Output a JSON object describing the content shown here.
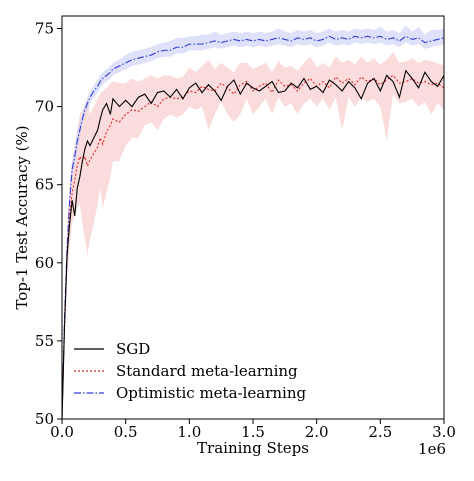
{
  "chart_data": {
    "type": "line",
    "xlabel": "Training Steps",
    "ylabel": "Top-1 Test Accuracy (%)",
    "x_offset_text": "1e6",
    "xlim": [
      0,
      3.0
    ],
    "ylim": [
      50,
      75.8
    ],
    "x_ticks": [
      0.0,
      0.5,
      1.0,
      1.5,
      2.0,
      2.5,
      3.0
    ],
    "x_tick_labels": [
      "0.0",
      "0.5",
      "1.0",
      "1.5",
      "2.0",
      "2.5",
      "3.0"
    ],
    "y_ticks": [
      50,
      55,
      60,
      65,
      70,
      75
    ],
    "y_tick_labels": [
      "50",
      "55",
      "60",
      "65",
      "70",
      "75"
    ],
    "grid": false,
    "legend_position": "lower-left",
    "series": [
      {
        "name": "SGD",
        "color": "#000000",
        "style": "solid",
        "x": [
          0.0,
          0.02,
          0.04,
          0.06,
          0.08,
          0.1,
          0.12,
          0.14,
          0.16,
          0.18,
          0.2,
          0.22,
          0.25,
          0.28,
          0.3,
          0.32,
          0.35,
          0.38,
          0.4,
          0.45,
          0.5,
          0.55,
          0.6,
          0.65,
          0.7,
          0.75,
          0.8,
          0.85,
          0.9,
          0.95,
          1.0,
          1.05,
          1.1,
          1.15,
          1.2,
          1.25,
          1.3,
          1.35,
          1.4,
          1.45,
          1.5,
          1.55,
          1.6,
          1.65,
          1.7,
          1.75,
          1.8,
          1.85,
          1.9,
          1.95,
          2.0,
          2.05,
          2.1,
          2.15,
          2.2,
          2.25,
          2.3,
          2.35,
          2.4,
          2.45,
          2.5,
          2.55,
          2.6,
          2.65,
          2.7,
          2.75,
          2.8,
          2.85,
          2.9,
          2.95,
          3.0
        ],
        "values": [
          50.0,
          56.0,
          60.5,
          62.5,
          64.0,
          63.0,
          64.8,
          65.5,
          66.5,
          67.3,
          67.8,
          67.5,
          68.0,
          68.5,
          69.2,
          69.8,
          70.2,
          69.5,
          70.5,
          70.0,
          70.4,
          70.0,
          70.6,
          70.8,
          70.2,
          70.9,
          71.0,
          70.6,
          71.1,
          70.5,
          71.2,
          71.5,
          70.9,
          71.4,
          71.0,
          70.4,
          71.3,
          71.7,
          70.8,
          71.5,
          71.2,
          71.0,
          71.3,
          71.6,
          70.9,
          71.0,
          71.5,
          71.2,
          71.8,
          71.1,
          71.3,
          70.9,
          71.7,
          71.4,
          71.0,
          71.6,
          71.2,
          70.5,
          71.5,
          71.8,
          71.0,
          72.0,
          71.6,
          70.6,
          72.3,
          71.8,
          71.2,
          72.2,
          71.6,
          71.3,
          72.0
        ]
      },
      {
        "name": "Standard meta-learning",
        "color": "#e8242a",
        "style": "dotted",
        "band_color": "#f7c5c5",
        "x": [
          0.0,
          0.02,
          0.04,
          0.06,
          0.08,
          0.1,
          0.12,
          0.14,
          0.16,
          0.18,
          0.2,
          0.22,
          0.25,
          0.28,
          0.3,
          0.32,
          0.35,
          0.38,
          0.4,
          0.45,
          0.5,
          0.55,
          0.6,
          0.65,
          0.7,
          0.75,
          0.8,
          0.85,
          0.9,
          0.95,
          1.0,
          1.05,
          1.1,
          1.15,
          1.2,
          1.25,
          1.3,
          1.35,
          1.4,
          1.45,
          1.5,
          1.55,
          1.6,
          1.65,
          1.7,
          1.75,
          1.8,
          1.85,
          1.9,
          1.95,
          2.0,
          2.05,
          2.1,
          2.15,
          2.2,
          2.25,
          2.3,
          2.35,
          2.4,
          2.45,
          2.5,
          2.55,
          2.6,
          2.65,
          2.7,
          2.75,
          2.8,
          2.85,
          2.9,
          2.95,
          3.0
        ],
        "values": [
          50.0,
          56.0,
          60.5,
          63.0,
          64.5,
          65.3,
          66.2,
          66.8,
          66.5,
          66.8,
          66.2,
          66.6,
          67.0,
          67.4,
          68.0,
          67.6,
          68.4,
          68.8,
          69.2,
          69.0,
          69.5,
          69.8,
          69.7,
          70.0,
          70.3,
          70.0,
          70.5,
          70.6,
          70.5,
          70.6,
          71.0,
          70.9,
          71.3,
          71.1,
          71.0,
          71.5,
          71.2,
          70.8,
          71.4,
          71.6,
          71.0,
          71.3,
          71.5,
          70.9,
          71.7,
          71.3,
          71.4,
          71.0,
          71.5,
          71.8,
          71.3,
          71.6,
          71.2,
          71.9,
          71.5,
          71.8,
          71.4,
          71.9,
          71.6,
          71.8,
          71.4,
          71.7,
          72.0,
          71.5,
          71.6,
          71.8,
          71.5,
          71.6,
          71.4,
          71.5,
          71.2
        ],
        "band_lower": [
          50.0,
          55.0,
          59.0,
          61.0,
          62.5,
          63.0,
          63.5,
          63.8,
          62.5,
          61.5,
          60.5,
          61.5,
          62.5,
          63.8,
          64.8,
          63.5,
          64.5,
          65.5,
          66.5,
          66.5,
          67.5,
          68.0,
          68.0,
          68.8,
          69.0,
          68.5,
          69.2,
          69.5,
          69.3,
          69.5,
          70.0,
          69.8,
          70.0,
          68.5,
          69.5,
          70.3,
          69.5,
          69.0,
          69.5,
          70.5,
          69.5,
          70.0,
          70.5,
          69.5,
          70.6,
          70.0,
          70.2,
          69.5,
          70.2,
          70.5,
          70.0,
          70.5,
          69.8,
          70.6,
          68.5,
          70.6,
          70.0,
          70.6,
          70.3,
          70.5,
          70.0,
          67.8,
          70.8,
          70.2,
          70.3,
          70.5,
          70.0,
          70.3,
          69.5,
          70.2,
          69.8
        ],
        "band_upper": [
          50.0,
          57.0,
          62.0,
          65.0,
          66.5,
          67.5,
          68.5,
          69.5,
          69.8,
          70.0,
          70.5,
          69.5,
          70.0,
          70.5,
          70.8,
          71.0,
          71.2,
          71.5,
          71.6,
          71.5,
          71.5,
          71.8,
          71.6,
          71.8,
          72.0,
          71.8,
          72.0,
          72.0,
          71.8,
          71.9,
          72.5,
          72.2,
          72.6,
          73.0,
          72.4,
          72.8,
          72.5,
          72.2,
          72.8,
          72.8,
          72.4,
          72.6,
          72.8,
          72.2,
          72.9,
          72.5,
          72.6,
          72.3,
          72.8,
          73.2,
          72.5,
          72.8,
          72.5,
          73.2,
          72.8,
          73.0,
          72.7,
          73.2,
          72.8,
          73.1,
          72.7,
          73.0,
          73.5,
          72.8,
          72.9,
          73.1,
          72.8,
          73.0,
          72.9,
          72.8,
          72.6
        ]
      },
      {
        "name": "Optimistic meta-learning",
        "color": "#2f3fd8",
        "style": "dashdot",
        "band_color": "#c8cdf5",
        "x": [
          0.0,
          0.02,
          0.04,
          0.06,
          0.08,
          0.1,
          0.12,
          0.14,
          0.16,
          0.18,
          0.2,
          0.22,
          0.25,
          0.28,
          0.3,
          0.32,
          0.35,
          0.38,
          0.4,
          0.45,
          0.5,
          0.55,
          0.6,
          0.65,
          0.7,
          0.75,
          0.8,
          0.85,
          0.9,
          0.95,
          1.0,
          1.05,
          1.1,
          1.15,
          1.2,
          1.25,
          1.3,
          1.35,
          1.4,
          1.45,
          1.5,
          1.55,
          1.6,
          1.65,
          1.7,
          1.75,
          1.8,
          1.85,
          1.9,
          1.95,
          2.0,
          2.05,
          2.1,
          2.15,
          2.2,
          2.25,
          2.3,
          2.35,
          2.4,
          2.45,
          2.5,
          2.55,
          2.6,
          2.65,
          2.7,
          2.75,
          2.8,
          2.85,
          2.9,
          2.95,
          3.0
        ],
        "values": [
          50.0,
          56.5,
          61.0,
          64.0,
          66.0,
          66.8,
          67.8,
          68.5,
          69.2,
          69.8,
          70.2,
          70.6,
          71.0,
          71.3,
          71.6,
          71.8,
          72.0,
          72.2,
          72.4,
          72.6,
          72.8,
          73.0,
          73.1,
          73.2,
          73.3,
          73.5,
          73.6,
          73.6,
          73.8,
          73.8,
          74.0,
          74.0,
          74.0,
          74.1,
          74.2,
          74.1,
          74.2,
          74.3,
          74.2,
          74.3,
          74.2,
          74.3,
          74.2,
          74.3,
          74.4,
          74.3,
          74.2,
          74.4,
          74.3,
          74.4,
          74.2,
          74.3,
          74.5,
          74.3,
          74.4,
          74.3,
          74.5,
          74.4,
          74.5,
          74.4,
          74.5,
          74.3,
          74.4,
          74.2,
          74.5,
          74.3,
          74.4,
          74.1,
          74.2,
          74.3,
          74.4
        ],
        "band_lower": [
          50.0,
          56.0,
          60.5,
          63.5,
          65.5,
          66.2,
          67.2,
          68.0,
          68.8,
          69.4,
          69.8,
          70.2,
          70.6,
          70.9,
          71.2,
          71.4,
          71.6,
          71.8,
          72.0,
          72.2,
          72.4,
          72.6,
          72.7,
          72.8,
          72.9,
          73.1,
          73.2,
          73.2,
          73.4,
          73.4,
          73.6,
          73.6,
          73.6,
          73.7,
          73.8,
          73.7,
          73.8,
          73.9,
          73.8,
          73.9,
          73.8,
          73.9,
          73.8,
          73.9,
          74.0,
          73.9,
          73.8,
          74.0,
          73.9,
          74.0,
          73.8,
          73.9,
          74.1,
          73.9,
          74.0,
          73.9,
          74.1,
          74.0,
          74.1,
          74.0,
          74.1,
          73.9,
          74.0,
          73.8,
          74.1,
          73.9,
          74.0,
          73.7,
          73.8,
          73.9,
          74.0
        ],
        "band_upper": [
          50.0,
          57.0,
          61.5,
          64.5,
          66.5,
          67.4,
          68.4,
          69.0,
          69.6,
          70.2,
          70.6,
          71.0,
          71.4,
          71.7,
          72.0,
          72.2,
          72.4,
          72.6,
          72.8,
          73.0,
          73.3,
          73.5,
          73.6,
          73.7,
          73.8,
          74.0,
          74.1,
          74.2,
          74.4,
          74.4,
          74.5,
          74.5,
          74.6,
          74.6,
          74.8,
          74.6,
          74.7,
          74.8,
          74.7,
          74.8,
          74.7,
          74.8,
          74.7,
          74.8,
          75.0,
          74.8,
          74.7,
          74.9,
          74.8,
          74.9,
          74.7,
          74.8,
          75.0,
          74.8,
          74.9,
          74.8,
          75.0,
          74.9,
          75.0,
          74.9,
          75.1,
          74.8,
          74.9,
          74.7,
          75.2,
          74.8,
          75.1,
          74.6,
          74.9,
          74.9,
          75.0
        ]
      }
    ]
  }
}
